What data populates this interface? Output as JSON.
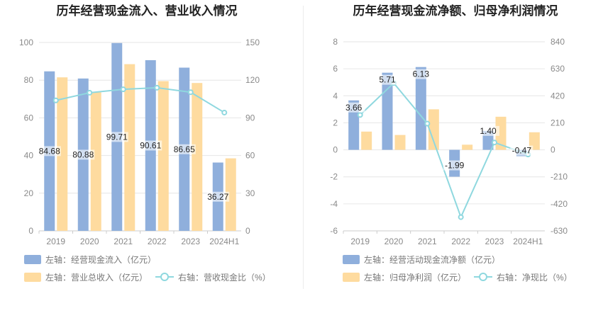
{
  "colors": {
    "bar1": "#8fafdc",
    "bar2": "#fedb9f",
    "line": "#8fd8df",
    "grid": "#e6e6e6",
    "axis": "#cccccc"
  },
  "chart_data": [
    {
      "type": "bar",
      "title": "历年经营现金流入、营业收入情况",
      "categories": [
        "2019",
        "2020",
        "2021",
        "2022",
        "2023",
        "2024H1"
      ],
      "left_axis": {
        "ticks": [
          "0",
          "20",
          "40",
          "60",
          "80",
          "100"
        ],
        "range": [
          0,
          100
        ]
      },
      "right_axis": {
        "ticks": [
          "0",
          "30",
          "60",
          "90",
          "120",
          "150"
        ],
        "range": [
          0,
          150
        ]
      },
      "series": [
        {
          "name": "经营现金流入",
          "legend": "左轴：经营现金流入（亿元）",
          "axis": "left",
          "kind": "bar",
          "values": [
            84.68,
            80.88,
            99.71,
            90.61,
            86.65,
            36.27
          ],
          "labels": [
            "84.68",
            "80.88",
            "99.71",
            "90.61",
            "86.65",
            "36.27"
          ]
        },
        {
          "name": "营业总收入",
          "legend": "左轴：营业总收入（亿元）",
          "axis": "left",
          "kind": "bar",
          "values": [
            81.5,
            73.5,
            88.5,
            79.5,
            78.5,
            38.5
          ]
        },
        {
          "name": "营收现金比",
          "legend": "右轴：营收现金比（%）",
          "axis": "right",
          "kind": "line",
          "values": [
            103.9,
            110.0,
            112.7,
            114.0,
            110.4,
            94.2
          ]
        }
      ]
    },
    {
      "type": "bar",
      "title": "历年经营现金流净额、归母净利润情况",
      "categories": [
        "2019",
        "2020",
        "2021",
        "2022",
        "2023",
        "2024H1"
      ],
      "left_axis": {
        "ticks": [
          "-6",
          "-4",
          "-2",
          "0",
          "2",
          "4",
          "6",
          "8"
        ],
        "range": [
          -6,
          8
        ]
      },
      "right_axis": {
        "ticks": [
          "-630",
          "-420",
          "-210",
          "0",
          "210",
          "420",
          "630",
          "840"
        ],
        "range": [
          -630,
          840
        ]
      },
      "series": [
        {
          "name": "经营活动现金流净额",
          "legend": "左轴：经营活动现金流净额（亿元）",
          "axis": "left",
          "kind": "bar",
          "values": [
            3.66,
            5.71,
            6.13,
            -1.99,
            1.4,
            -0.47
          ],
          "labels": [
            "3.66",
            "5.71",
            "6.13",
            "-1.99",
            "1.40",
            "-0.47"
          ]
        },
        {
          "name": "归母净利润",
          "legend": "左轴：归母净利润（亿元）",
          "axis": "left",
          "kind": "bar",
          "values": [
            1.35,
            1.1,
            3.0,
            0.38,
            2.45,
            1.3
          ]
        },
        {
          "name": "净现比",
          "legend": "右轴：净现比（%）",
          "axis": "right",
          "kind": "line",
          "values": [
            271,
            519,
            204,
            -523,
            57,
            -36
          ]
        }
      ]
    }
  ]
}
